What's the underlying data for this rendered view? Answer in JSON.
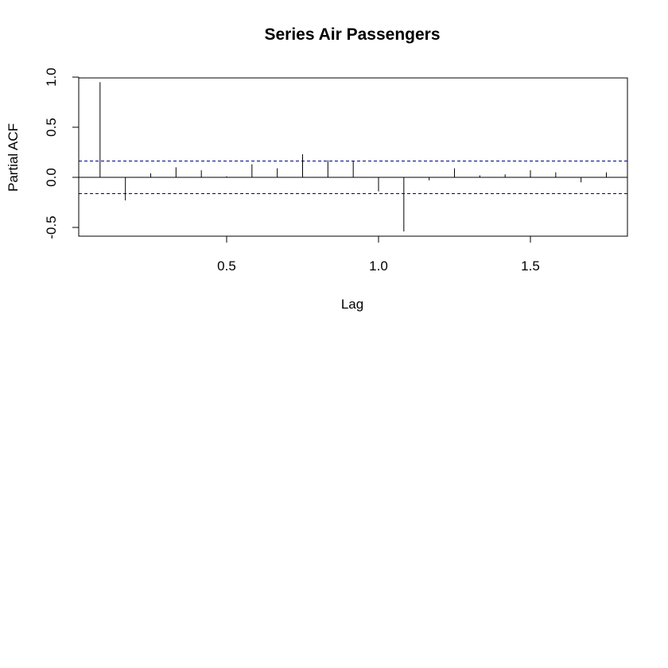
{
  "chart_data": {
    "type": "bar",
    "title": "Series Air Passengers",
    "xlabel": "Lag",
    "ylabel": "Partial ACF",
    "xlim": [
      0.03,
      1.82
    ],
    "ylim": [
      -0.6,
      1.0
    ],
    "x_ticks": [
      {
        "value": 0.5,
        "label": "0.5"
      },
      {
        "value": 1.0,
        "label": "1.0"
      },
      {
        "value": 1.5,
        "label": "1.5"
      }
    ],
    "y_ticks": [
      {
        "value": -0.5,
        "label": "-0.5"
      },
      {
        "value": 0.0,
        "label": "0.0"
      },
      {
        "value": 0.5,
        "label": "0.5"
      },
      {
        "value": 1.0,
        "label": "1.0"
      }
    ],
    "confidence_bound": 0.163,
    "confidence_color": "#00008b",
    "x": [
      0.0833,
      0.1667,
      0.25,
      0.3333,
      0.4167,
      0.5,
      0.5833,
      0.6667,
      0.75,
      0.8333,
      0.9167,
      1.0,
      1.0833,
      1.1667,
      1.25,
      1.3333,
      1.4167,
      1.5,
      1.5833,
      1.6667,
      1.75
    ],
    "values": [
      0.95,
      -0.23,
      0.04,
      0.1,
      0.07,
      0.01,
      0.13,
      0.09,
      0.23,
      0.17,
      0.16,
      -0.14,
      -0.54,
      -0.03,
      0.09,
      0.02,
      0.03,
      0.07,
      0.05,
      -0.05,
      0.05
    ]
  }
}
